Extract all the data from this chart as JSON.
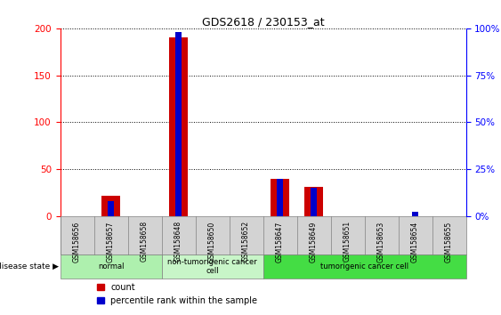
{
  "title": "GDS2618 / 230153_at",
  "samples": [
    "GSM158656",
    "GSM158657",
    "GSM158658",
    "GSM158648",
    "GSM158650",
    "GSM158652",
    "GSM158647",
    "GSM158649",
    "GSM158651",
    "GSM158653",
    "GSM158654",
    "GSM158655"
  ],
  "count_values": [
    0,
    22,
    0,
    190,
    0,
    0,
    40,
    31,
    0,
    0,
    0,
    0
  ],
  "percentile_values": [
    0,
    8,
    0,
    98,
    0,
    0,
    20,
    15,
    0,
    0,
    2,
    0
  ],
  "groups": [
    {
      "label": "normal",
      "start": 0,
      "end": 3,
      "color": "#aef0ae"
    },
    {
      "label": "non-tumorigenic cancer\ncell",
      "start": 3,
      "end": 6,
      "color": "#c8f5c8"
    },
    {
      "label": "tumorigenic cancer cell",
      "start": 6,
      "end": 12,
      "color": "#44dd44"
    }
  ],
  "ylim_left": [
    0,
    200
  ],
  "ylim_right": [
    0,
    100
  ],
  "yticks_left": [
    0,
    50,
    100,
    150,
    200
  ],
  "yticks_right": [
    0,
    25,
    50,
    75,
    100
  ],
  "ytick_labels_right": [
    "0%",
    "25%",
    "50%",
    "75%",
    "100%"
  ],
  "bar_color_red": "#cc0000",
  "bar_color_blue": "#0000cc",
  "red_bar_width": 0.55,
  "blue_bar_width": 0.2,
  "bg_color": "#ffffff",
  "sample_box_color": "#d3d3d3",
  "disease_state_label": "disease state",
  "legend_count": "count",
  "legend_percentile": "percentile rank within the sample"
}
